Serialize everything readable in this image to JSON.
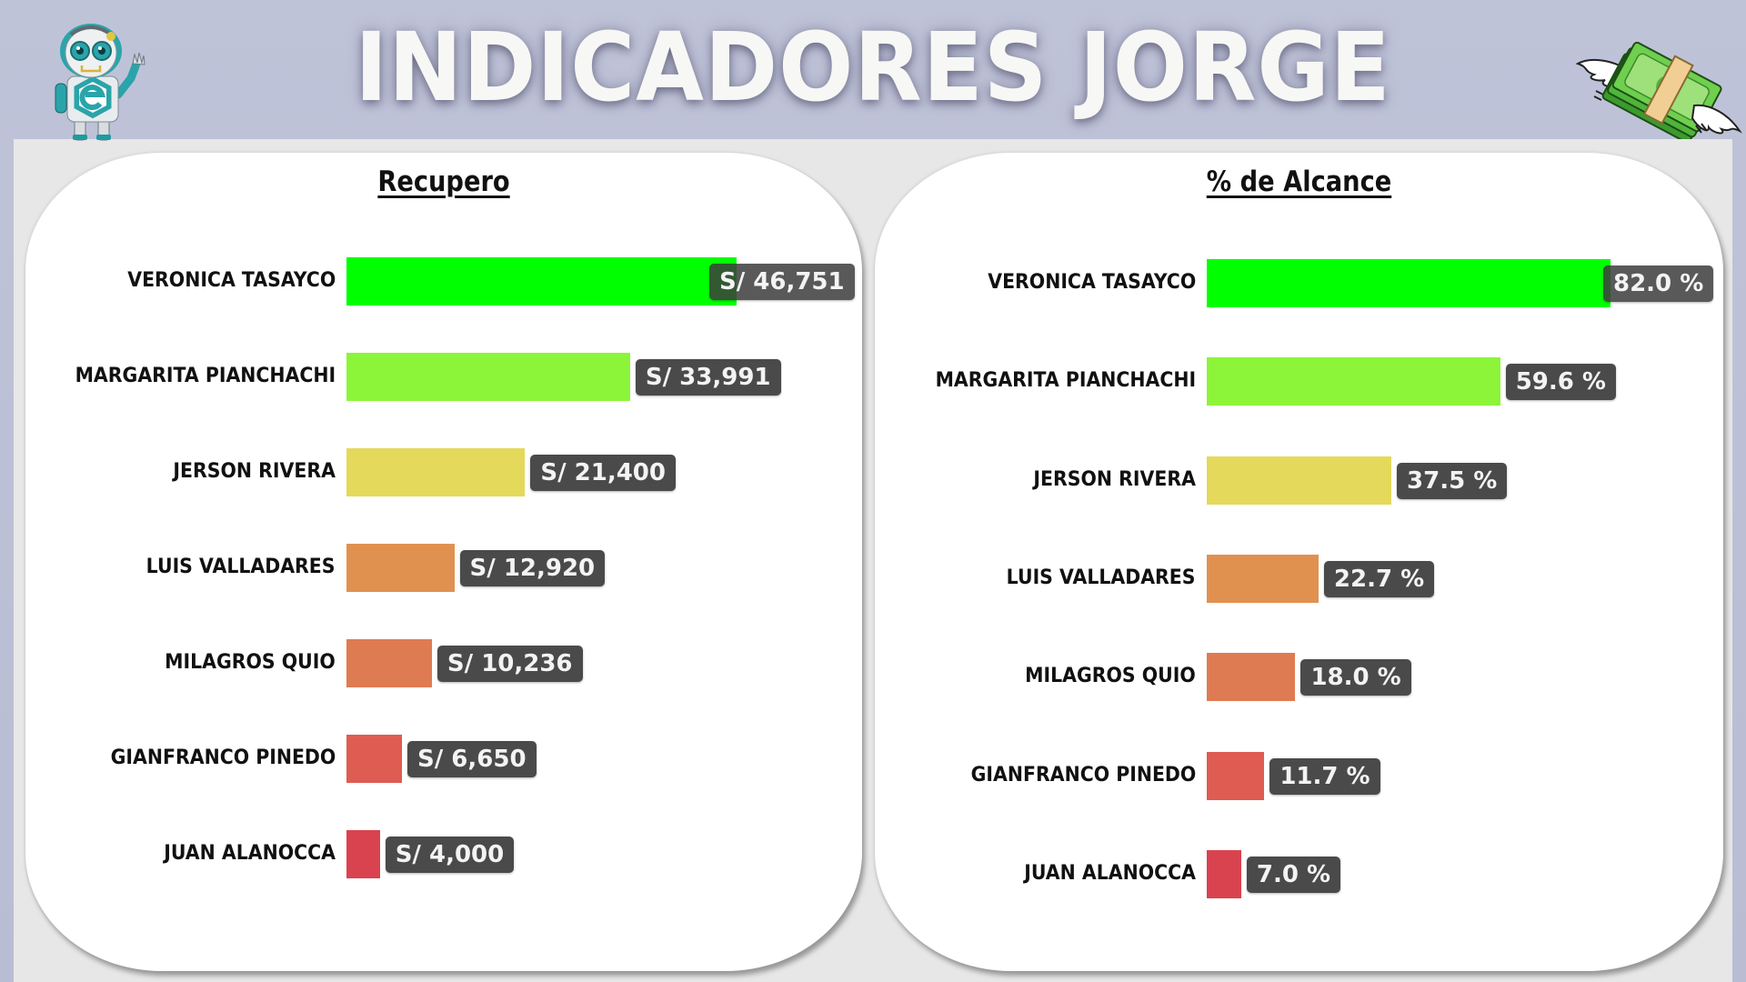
{
  "header": {
    "title": "INDICADORES JORGE",
    "left_icon": "robot-mascot-icon",
    "right_icon": "flying-money-icon"
  },
  "colors": {
    "background": "#bcc0d6",
    "slide": "#e7e7e7",
    "card": "#ffffff",
    "value_badge": "#4a4a4a",
    "bar_colors": [
      "#00ff00",
      "#8cf53a",
      "#e4d95a",
      "#e09150",
      "#df7b52",
      "#de5c51",
      "#d9434f"
    ]
  },
  "panels": [
    {
      "title": "Recupero",
      "rows": [
        {
          "name": "VERONICA TASAYCO",
          "value": 46751,
          "label": "S/ 46,751"
        },
        {
          "name": "MARGARITA PIANCHACHI",
          "value": 33991,
          "label": "S/ 33,991"
        },
        {
          "name": "JERSON RIVERA",
          "value": 21400,
          "label": "S/ 21,400"
        },
        {
          "name": "LUIS VALLADARES",
          "value": 12920,
          "label": "S/ 12,920"
        },
        {
          "name": "MILAGROS QUIO",
          "value": 10236,
          "label": "S/ 10,236"
        },
        {
          "name": "GIANFRANCO PINEDO",
          "value": 6650,
          "label": "S/ 6,650"
        },
        {
          "name": "JUAN ALANOCCA",
          "value": 4000,
          "label": "S/ 4,000"
        }
      ]
    },
    {
      "title": "% de Alcance",
      "rows": [
        {
          "name": "VERONICA TASAYCO",
          "value": 82.0,
          "label": "82.0 %"
        },
        {
          "name": "MARGARITA PIANCHACHI",
          "value": 59.6,
          "label": "59.6 %"
        },
        {
          "name": "JERSON RIVERA",
          "value": 37.5,
          "label": "37.5 %"
        },
        {
          "name": "LUIS VALLADARES",
          "value": 22.7,
          "label": "22.7 %"
        },
        {
          "name": "MILAGROS QUIO",
          "value": 18.0,
          "label": "18.0 %"
        },
        {
          "name": "GIANFRANCO PINEDO",
          "value": 11.7,
          "label": "11.7 %"
        },
        {
          "name": "JUAN ALANOCCA",
          "value": 7.0,
          "label": "7.0 %"
        }
      ]
    }
  ],
  "chart_data": [
    {
      "type": "bar",
      "orientation": "horizontal",
      "title": "Recupero",
      "categories": [
        "VERONICA TASAYCO",
        "MARGARITA PIANCHACHI",
        "JERSON RIVERA",
        "LUIS VALLADARES",
        "MILAGROS QUIO",
        "GIANFRANCO PINEDO",
        "JUAN ALANOCCA"
      ],
      "values": [
        46751,
        33991,
        21400,
        12920,
        10236,
        6650,
        4000
      ],
      "data_labels": [
        "S/ 46,751",
        "S/ 33,991",
        "S/ 21,400",
        "S/ 12,920",
        "S/ 10,236",
        "S/ 6,650",
        "S/ 4,000"
      ],
      "xlabel": "",
      "ylabel": "",
      "grid": false,
      "legend": "none"
    },
    {
      "type": "bar",
      "orientation": "horizontal",
      "title": "% de Alcance",
      "categories": [
        "VERONICA TASAYCO",
        "MARGARITA PIANCHACHI",
        "JERSON RIVERA",
        "LUIS VALLADARES",
        "MILAGROS QUIO",
        "GIANFRANCO PINEDO",
        "JUAN ALANOCCA"
      ],
      "values": [
        82.0,
        59.6,
        37.5,
        22.7,
        18.0,
        11.7,
        7.0
      ],
      "data_labels": [
        "82.0 %",
        "59.6 %",
        "37.5 %",
        "22.7 %",
        "18.0 %",
        "11.7 %",
        "7.0 %"
      ],
      "xlabel": "",
      "ylabel": "",
      "grid": false,
      "legend": "none"
    }
  ]
}
